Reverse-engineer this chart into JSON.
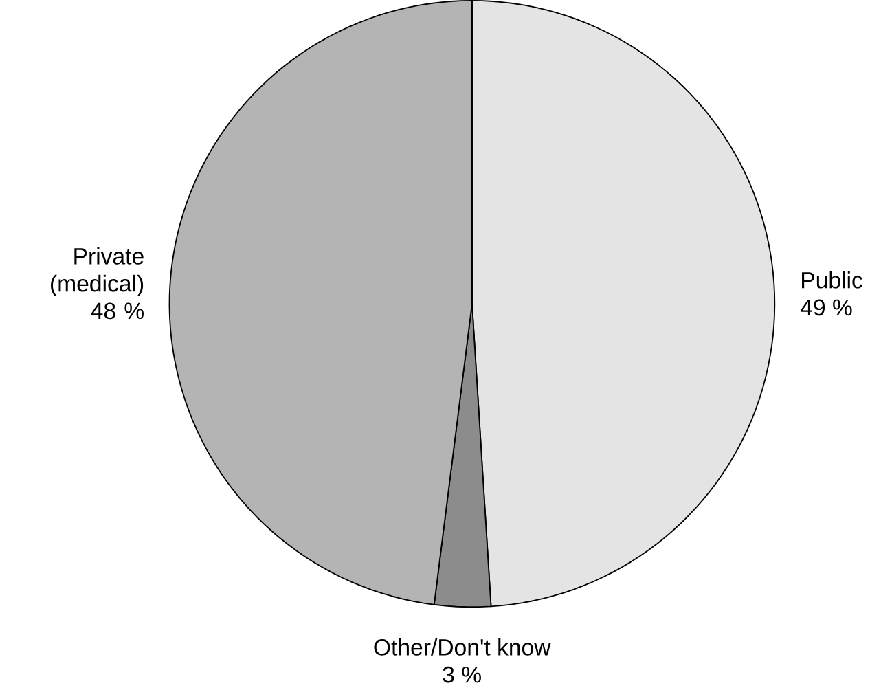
{
  "chart_data": {
    "type": "pie",
    "categories": [
      "Public",
      "Other/Don't know",
      "Private (medical)"
    ],
    "values": [
      49,
      3,
      48
    ],
    "value_labels": [
      "49 %",
      "3 %",
      "48 %"
    ],
    "colors": [
      "#e4e4e4",
      "#8c8c8c",
      "#b4b4b4"
    ]
  }
}
